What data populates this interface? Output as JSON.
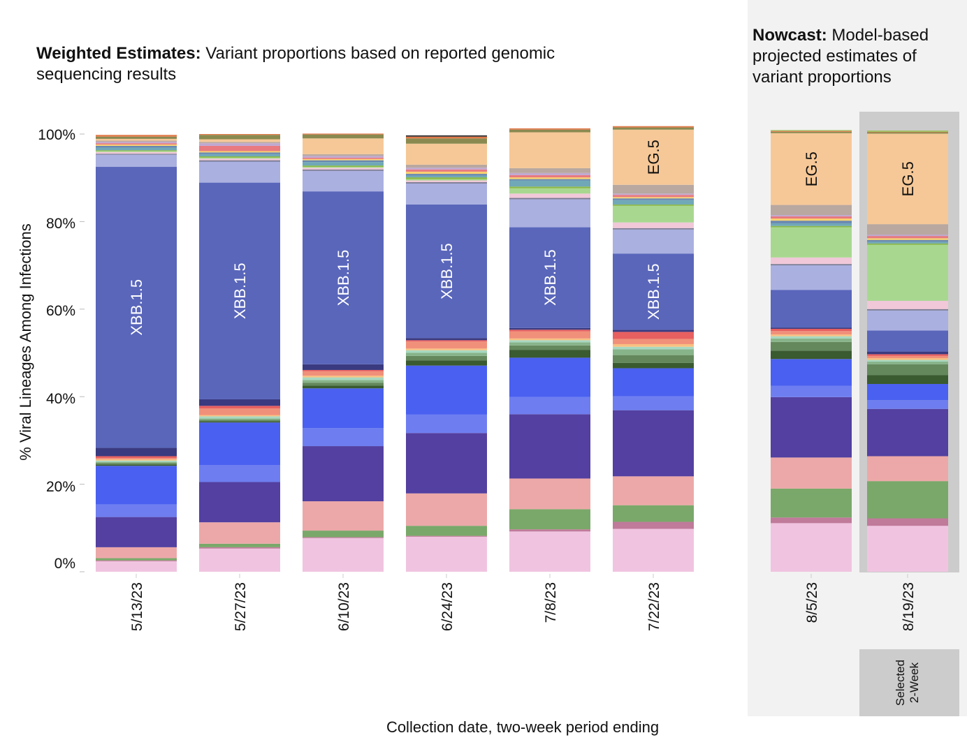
{
  "titles": {
    "weighted_bold": "Weighted Estimates:",
    "weighted_rest": " Variant proportions based on reported genomic sequencing results",
    "nowcast_bold": "Nowcast:",
    "nowcast_rest": " Model-based projected estimates of variant proportions"
  },
  "selected_label_line1": "Selected",
  "selected_label_line2": "2-Week",
  "chart_data": {
    "type": "bar",
    "stacked": true,
    "ylabel": "% Viral Lineages Among Infections",
    "xlabel": "Collection date, two-week period ending",
    "ylim": [
      0,
      100
    ],
    "yticks": [
      "0%",
      "20%",
      "40%",
      "60%",
      "80%",
      "100%"
    ],
    "categories": [
      "5/13/23",
      "5/27/23",
      "6/10/23",
      "6/24/23",
      "7/8/23",
      "7/22/23",
      "8/5/23",
      "8/19/23"
    ],
    "nowcast_categories": [
      "8/5/23",
      "8/19/23"
    ],
    "selected_category": "8/19/23",
    "series": [
      {
        "color": "#f0c4e0",
        "values": [
          2.4,
          5.3,
          7.7,
          8.0,
          9.2,
          9.8,
          11.1,
          10.5
        ]
      },
      {
        "color": "#c07a9a",
        "values": [
          0.2,
          0.3,
          0.2,
          0.2,
          0.5,
          1.6,
          1.3,
          1.7
        ]
      },
      {
        "color": "#7aa86a",
        "values": [
          0.5,
          0.8,
          1.5,
          2.3,
          4.6,
          3.8,
          6.6,
          8.5
        ]
      },
      {
        "color": "#eca8a8",
        "values": [
          2.5,
          4.9,
          6.7,
          7.4,
          7.0,
          6.6,
          7.1,
          5.7
        ]
      },
      {
        "color": "#5340a0",
        "values": [
          6.9,
          9.2,
          12.6,
          13.8,
          14.7,
          15.1,
          13.8,
          10.8
        ]
      },
      {
        "color": "#6e7ef0",
        "values": [
          2.9,
          3.9,
          4.1,
          4.2,
          3.9,
          3.2,
          2.6,
          2.0
        ]
      },
      {
        "color": "#4a60f0",
        "values": [
          8.8,
          9.7,
          9.1,
          11.2,
          9.0,
          6.4,
          6.1,
          3.7
        ]
      },
      {
        "color": "#3a5a30",
        "values": [
          0.3,
          0.3,
          0.6,
          1.2,
          1.8,
          1.2,
          1.9,
          2.0
        ]
      },
      {
        "color": "#64885c",
        "values": [
          0.3,
          0.3,
          0.7,
          1.0,
          1.0,
          1.8,
          2.0,
          2.5
        ]
      },
      {
        "color": "#88b48a",
        "values": [
          0.3,
          0.3,
          0.6,
          0.7,
          0.7,
          1.3,
          0.8,
          0.6
        ]
      },
      {
        "color": "#a8d8c0",
        "values": [
          0.3,
          0.5,
          0.6,
          0.6,
          0.5,
          0.6,
          0.5,
          0.4
        ]
      },
      {
        "color": "#f8c080",
        "values": [
          0.3,
          0.3,
          0.4,
          0.4,
          0.4,
          0.6,
          0.4,
          0.4
        ]
      },
      {
        "color": "#f0907a",
        "values": [
          0.3,
          1.5,
          1.0,
          1.6,
          1.6,
          1.2,
          0.8,
          0.5
        ]
      },
      {
        "color": "#e86060",
        "values": [
          0.4,
          0.6,
          0.3,
          0.3,
          0.4,
          1.6,
          0.5,
          0.4
        ]
      },
      {
        "color": "#3a3a80",
        "values": [
          1.9,
          1.5,
          1.3,
          0.5,
          0.4,
          0.5,
          0.3,
          0.6
        ]
      },
      {
        "color": "#5966ba",
        "values": [
          64.2,
          49.5,
          39.5,
          30.5,
          23.0,
          17.4,
          8.6,
          4.8
        ]
      },
      {
        "color": "#aab0e0",
        "values": [
          2.8,
          4.8,
          4.7,
          4.8,
          6.4,
          5.5,
          5.6,
          4.6
        ]
      },
      {
        "color": "#787890",
        "values": [
          0.2,
          0.3,
          0.3,
          0.3,
          0.3,
          0.3,
          0.3,
          0.3
        ]
      },
      {
        "color": "#f0c8d8",
        "values": [
          0.4,
          0.4,
          0.4,
          0.4,
          1.0,
          1.3,
          1.5,
          1.9
        ]
      },
      {
        "color": "#a8d890",
        "values": [
          0.2,
          0.2,
          0.2,
          0.3,
          1.2,
          3.8,
          6.9,
          12.8
        ]
      },
      {
        "color": "#8ab848",
        "values": [
          0.2,
          0.3,
          0.3,
          0.4,
          0.4,
          0.3,
          0.3,
          0.3
        ]
      },
      {
        "color": "#70a8b8",
        "values": [
          0.6,
          0.5,
          0.8,
          0.4,
          1.4,
          1.0,
          0.6,
          0.4
        ]
      },
      {
        "color": "#6888b0",
        "values": [
          0.4,
          0.4,
          0.4,
          0.4,
          0.3,
          0.4,
          0.6,
          0.4
        ]
      },
      {
        "color": "#f8d070",
        "values": [
          0.3,
          0.3,
          0.3,
          0.5,
          0.4,
          0.3,
          0.5,
          0.4
        ]
      },
      {
        "color": "#e87a80",
        "values": [
          0.3,
          1.2,
          0.3,
          0.5,
          0.5,
          0.5,
          0.5,
          0.5
        ]
      },
      {
        "color": "#c0a8d0",
        "values": [
          0.3,
          0.6,
          0.4,
          0.4,
          0.5,
          0.3,
          0.3,
          0.3
        ]
      },
      {
        "color": "#b8a8a0",
        "values": [
          0.3,
          0.3,
          0.4,
          0.7,
          1.1,
          2.0,
          2.3,
          2.4
        ]
      },
      {
        "color": "#f6c897",
        "values": [
          0.4,
          0.6,
          3.6,
          4.8,
          8.2,
          12.6,
          16.4,
          20.7
        ]
      },
      {
        "color": "#8a8a50",
        "values": [
          0.5,
          1.0,
          0.9,
          1.2,
          0.6,
          0.5,
          0.3,
          0.3
        ]
      },
      {
        "color": "#e07848",
        "values": [
          0.4,
          0.2,
          0.2,
          0.4,
          0.3,
          0.3,
          0.2,
          0.1
        ]
      },
      {
        "color": "#303030",
        "values": [
          0.0,
          0.0,
          0.0,
          0.3,
          0.0,
          0.0,
          0.0,
          0.0
        ]
      },
      {
        "color": "#a0c060",
        "values": [
          0.0,
          0.0,
          0.0,
          0.0,
          0.0,
          0.0,
          0.2,
          0.3
        ]
      }
    ],
    "bar_labels": [
      {
        "category": "5/13/23",
        "text": "XBB.1.5",
        "series_index": 15
      },
      {
        "category": "5/27/23",
        "text": "XBB.1.5",
        "series_index": 15
      },
      {
        "category": "6/10/23",
        "text": "XBB.1.5",
        "series_index": 15
      },
      {
        "category": "6/24/23",
        "text": "XBB.1.5",
        "series_index": 15
      },
      {
        "category": "7/8/23",
        "text": "XBB.1.5",
        "series_index": 15
      },
      {
        "category": "7/22/23",
        "text": "XBB.1.5",
        "series_index": 15
      },
      {
        "category": "7/22/23",
        "text": "EG.5",
        "series_index": 27
      },
      {
        "category": "8/5/23",
        "text": "EG.5",
        "series_index": 27
      },
      {
        "category": "8/19/23",
        "text": "EG.5",
        "series_index": 27
      }
    ]
  }
}
